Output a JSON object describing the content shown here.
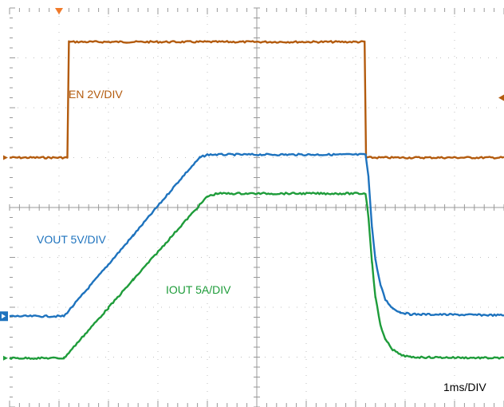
{
  "chart_data": {
    "type": "line",
    "x_unit": "ms",
    "xlim": [
      0,
      10
    ],
    "ylim": [
      0,
      8
    ],
    "grid": true,
    "annotations": [
      {
        "text": "EN 2V/DIV",
        "color": "#b35b0e"
      },
      {
        "text": "VOUT 5V/DIV",
        "color": "#1e73be"
      },
      {
        "text": "IOUT 5A/DIV",
        "color": "#1e9c3a"
      },
      {
        "text": "1ms/DIV",
        "color": "#000000"
      }
    ],
    "series": [
      {
        "color": "#b35b0e",
        "x": [
          0,
          1.17,
          1.2,
          7.18,
          7.21,
          10
        ],
        "y": [
          5.0,
          5.0,
          7.32,
          7.32,
          5.0,
          5.0
        ]
      },
      {
        "color": "#1e73be",
        "x": [
          0,
          1.1,
          1.5,
          2.0,
          2.5,
          3.0,
          3.5,
          3.85,
          4.0,
          7.2,
          7.26,
          7.33,
          7.4,
          7.5,
          7.6,
          7.75,
          7.9,
          8.1,
          10
        ],
        "y": [
          1.82,
          1.82,
          2.28,
          2.86,
          3.44,
          4.03,
          4.62,
          5.0,
          5.06,
          5.06,
          4.6,
          3.6,
          2.95,
          2.45,
          2.15,
          1.98,
          1.9,
          1.86,
          1.84
        ]
      },
      {
        "color": "#1e9c3a",
        "x": [
          0,
          1.1,
          1.5,
          2.0,
          2.5,
          3.0,
          3.5,
          4.0,
          4.2,
          7.2,
          7.26,
          7.33,
          7.4,
          7.5,
          7.6,
          7.75,
          7.9,
          8.1,
          10
        ],
        "y": [
          0.98,
          0.98,
          1.43,
          1.99,
          2.55,
          3.11,
          3.67,
          4.22,
          4.28,
          4.28,
          3.8,
          2.9,
          2.2,
          1.65,
          1.35,
          1.15,
          1.05,
          1.0,
          0.98
        ]
      }
    ],
    "markers": {
      "trigger_x": 1.0,
      "ch1_ref_y": 5.0,
      "ch2_ref_y": 1.82,
      "ch3_ref_y": 0.98,
      "trigger_level_y": 6.2
    }
  }
}
